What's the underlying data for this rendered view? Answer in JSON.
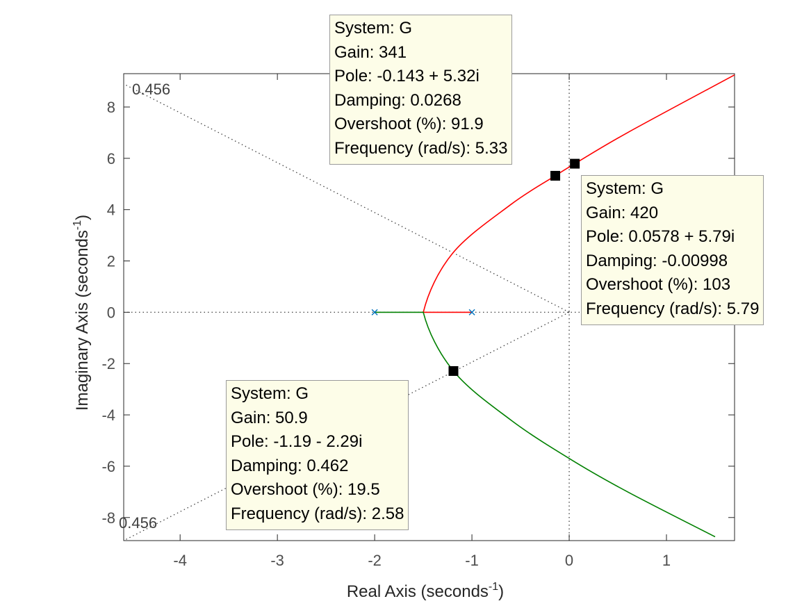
{
  "chart_data": {
    "type": "line",
    "title": "",
    "xlabel": "Real Axis (seconds",
    "ylabel": "Imaginary Axis (seconds",
    "axis_unit_exponent": "-1",
    "xlim": [
      -4.58,
      1.7
    ],
    "ylim": [
      -8.9,
      9.3
    ],
    "xticks": [
      "-4",
      "-3",
      "-2",
      "-1",
      "0",
      "1"
    ],
    "yticks": [
      "-8",
      "-6",
      "-4",
      "-2",
      "0",
      "2",
      "4",
      "6",
      "8"
    ],
    "grid": false,
    "colors": {
      "branch_upper": "#ff0000",
      "branch_lower": "#008000",
      "pole_marker": "#0072bd",
      "grid_line": "#404040"
    },
    "poles": [
      {
        "x": -2,
        "y": 0
      },
      {
        "x": -1,
        "y": 0
      }
    ],
    "breakaway_point": {
      "x": -1.5,
      "y": 0
    },
    "branches": [
      {
        "color": "red",
        "points": [
          [
            -1,
            0
          ],
          [
            -1.5,
            0
          ],
          [
            -1.2,
            2.29
          ],
          [
            -0.6,
            4.2
          ],
          [
            -0.143,
            5.32
          ],
          [
            0.0578,
            5.79
          ],
          [
            0.6,
            7.0
          ],
          [
            1.7,
            9.25
          ]
        ]
      },
      {
        "color": "green",
        "points": [
          [
            -2,
            0
          ],
          [
            -1.5,
            0
          ],
          [
            -1.19,
            -2.29
          ],
          [
            -0.6,
            -4.2
          ],
          [
            0,
            -5.7
          ],
          [
            0.6,
            -7.0
          ],
          [
            1.5,
            -8.75
          ]
        ]
      }
    ],
    "damping_line_label": "0.456",
    "damping_lines": [
      {
        "label": "0.456",
        "start": [
          0,
          0
        ],
        "end": [
          -4.58,
          8.9
        ]
      },
      {
        "label": "0.456",
        "start": [
          0,
          0
        ],
        "end": [
          -4.58,
          -8.9
        ]
      }
    ],
    "datatips": [
      {
        "system": "System: G",
        "gain": "Gain: 341",
        "pole": "Pole: -0.143 + 5.32i",
        "damping": "Damping: 0.0268",
        "overshoot": "Overshoot (%): 91.9",
        "frequency": "Frequency (rad/s): 5.33",
        "x": -0.143,
        "y": 5.32
      },
      {
        "system": "System: G",
        "gain": "Gain: 420",
        "pole": "Pole: 0.0578 + 5.79i",
        "damping": "Damping: -0.00998",
        "overshoot": "Overshoot (%): 103",
        "frequency": "Frequency (rad/s): 5.79",
        "x": 0.0578,
        "y": 5.79
      },
      {
        "system": "System: G",
        "gain": "Gain: 50.9",
        "pole": "Pole: -1.19 - 2.29i",
        "damping": "Damping: 0.462",
        "overshoot": "Overshoot (%): 19.5",
        "frequency": "Frequency (rad/s): 2.58",
        "x": -1.19,
        "y": -2.29
      }
    ]
  }
}
